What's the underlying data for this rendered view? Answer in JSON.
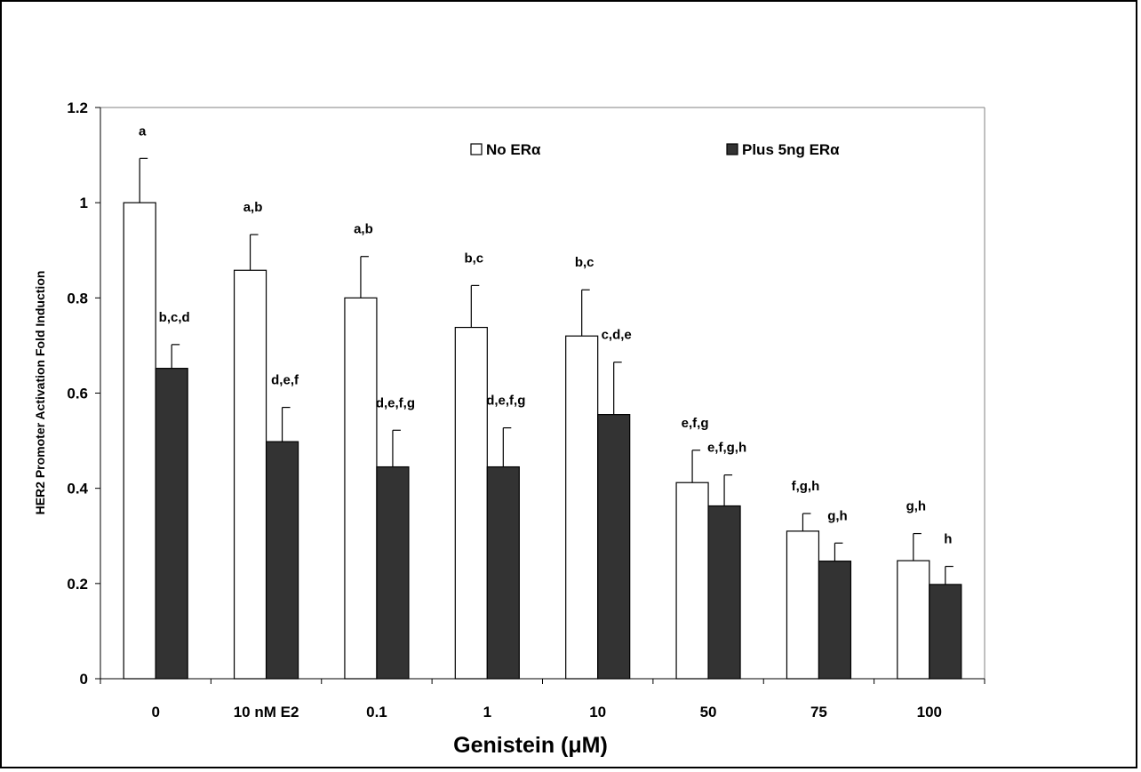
{
  "chart_data": {
    "type": "bar",
    "title": "",
    "xlabel": "Genistein (μM)",
    "ylabel": "HER2 Promoter Activation Fold Induction",
    "ylim": [
      0,
      1.2
    ],
    "yticks": [
      "0",
      "0.2",
      "0.4",
      "0.6",
      "0.8",
      "1",
      "1.2"
    ],
    "categories": [
      "0",
      "10 nM E2",
      "0.1",
      "1",
      "10",
      "50",
      "75",
      "100"
    ],
    "legend_position": "top",
    "grid": false,
    "series": [
      {
        "name": "No ERα",
        "color": "#ffffff",
        "values": [
          1.0,
          0.858,
          0.8,
          0.738,
          0.72,
          0.412,
          0.31,
          0.248
        ],
        "errors": [
          0.093,
          0.075,
          0.087,
          0.088,
          0.097,
          0.068,
          0.037,
          0.057
        ],
        "labels": [
          "a",
          "a,b",
          "a,b",
          "b,c",
          "b,c",
          "e,f,g",
          "f,g,h",
          "g,h"
        ]
      },
      {
        "name": "Plus 5ng ERα",
        "color": "#333333",
        "values": [
          0.652,
          0.498,
          0.445,
          0.445,
          0.555,
          0.363,
          0.247,
          0.198
        ],
        "errors": [
          0.05,
          0.072,
          0.077,
          0.082,
          0.11,
          0.065,
          0.038,
          0.038
        ],
        "labels": [
          "b,c,d",
          "d,e,f",
          "d,e,f,g",
          "d,e,f,g",
          "c,d,e",
          "e,f,g,h",
          "g,h",
          "h"
        ]
      }
    ]
  }
}
